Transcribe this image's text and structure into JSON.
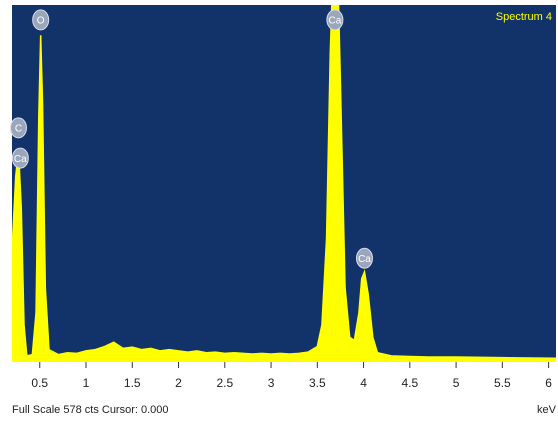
{
  "chart_data": {
    "type": "area",
    "title": "Spectrum 4",
    "footer": "Full Scale 578 cts Cursor: 0.000",
    "x_label": "keV",
    "color": "#ffff00",
    "background": "#12336a",
    "x": [
      0.2,
      0.24,
      0.27,
      0.3,
      0.33,
      0.36,
      0.42,
      0.46,
      0.49,
      0.51,
      0.53,
      0.56,
      0.6,
      0.7,
      0.8,
      0.9,
      1.0,
      1.1,
      1.2,
      1.3,
      1.4,
      1.5,
      1.6,
      1.7,
      1.8,
      1.9,
      2.0,
      2.1,
      2.2,
      2.3,
      2.4,
      2.5,
      2.6,
      2.7,
      2.8,
      2.9,
      3.0,
      3.1,
      3.2,
      3.3,
      3.4,
      3.5,
      3.55,
      3.6,
      3.64,
      3.67,
      3.72,
      3.75,
      3.8,
      3.85,
      3.9,
      3.95,
      3.98,
      4.01,
      4.05,
      4.1,
      4.15,
      4.3,
      4.5,
      4.7,
      5.0,
      5.5,
      6.08
    ],
    "values": [
      180,
      300,
      343,
      250,
      60,
      10,
      12,
      80,
      400,
      529,
      420,
      120,
      20,
      12,
      15,
      14,
      18,
      20,
      25,
      32,
      22,
      24,
      20,
      22,
      18,
      20,
      18,
      16,
      18,
      15,
      16,
      14,
      15,
      14,
      13,
      14,
      13,
      14,
      13,
      14,
      16,
      25,
      60,
      200,
      500,
      640,
      640,
      450,
      120,
      40,
      35,
      80,
      135,
      146,
      110,
      40,
      15,
      10,
      9,
      8,
      8,
      7,
      6
    ],
    "xlim": [
      0.2,
      6.08
    ],
    "ylim": [
      0,
      578
    ],
    "xticks": [
      0.5,
      1,
      1.5,
      2,
      2.5,
      3,
      3.5,
      4,
      4.5,
      5,
      5.5,
      6
    ],
    "annotations": [
      {
        "label": "O",
        "x": 0.51,
        "y": 554
      },
      {
        "label": "Ca",
        "x": 3.69,
        "y": 554
      },
      {
        "label": "C",
        "x": 0.27,
        "y": 379
      },
      {
        "label": "Ca",
        "x": 0.29,
        "y": 330
      },
      {
        "label": "Ca",
        "x": 4.01,
        "y": 168
      }
    ]
  }
}
